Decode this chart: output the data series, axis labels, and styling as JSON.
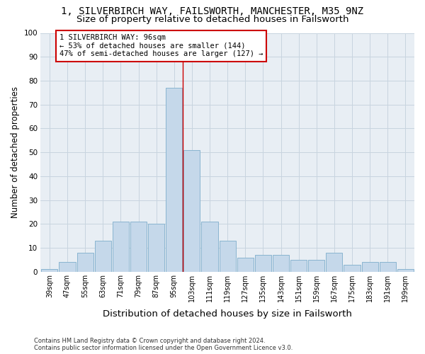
{
  "title_line1": "1, SILVERBIRCH WAY, FAILSWORTH, MANCHESTER, M35 9NZ",
  "title_line2": "Size of property relative to detached houses in Failsworth",
  "xlabel": "Distribution of detached houses by size in Failsworth",
  "ylabel": "Number of detached properties",
  "bin_labels": [
    "39sqm",
    "47sqm",
    "55sqm",
    "63sqm",
    "71sqm",
    "79sqm",
    "87sqm",
    "95sqm",
    "103sqm",
    "111sqm",
    "119sqm",
    "127sqm",
    "135sqm",
    "143sqm",
    "151sqm",
    "159sqm",
    "167sqm",
    "175sqm",
    "183sqm",
    "191sqm",
    "199sqm"
  ],
  "bar_heights": [
    1,
    4,
    8,
    13,
    21,
    21,
    20,
    77,
    51,
    21,
    13,
    6,
    7,
    7,
    5,
    5,
    8,
    3,
    4,
    4,
    1
  ],
  "bar_color": "#c5d8ea",
  "bar_edge_color": "#89b4d0",
  "grid_color": "#c8d4df",
  "vline_bin_index": 7,
  "vline_color": "#cc0000",
  "annotation_line1": "1 SILVERBIRCH WAY: 96sqm",
  "annotation_line2": "← 53% of detached houses are smaller (144)",
  "annotation_line3": "47% of semi-detached houses are larger (127) →",
  "annotation_box_color": "#cc0000",
  "ylim": [
    0,
    100
  ],
  "yticks": [
    0,
    10,
    20,
    30,
    40,
    50,
    60,
    70,
    80,
    90,
    100
  ],
  "footer_line1": "Contains HM Land Registry data © Crown copyright and database right 2024.",
  "footer_line2": "Contains public sector information licensed under the Open Government Licence v3.0.",
  "bg_color": "#e8eef4",
  "title_fontsize": 10,
  "subtitle_fontsize": 9.5,
  "ylabel_fontsize": 8.5,
  "xlabel_fontsize": 9.5,
  "tick_fontsize": 7,
  "annotation_fontsize": 7.5,
  "footer_fontsize": 6
}
